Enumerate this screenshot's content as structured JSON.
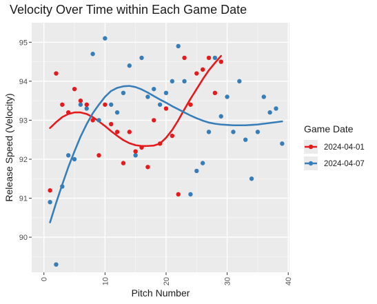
{
  "chart_data": {
    "type": "scatter",
    "title": "Velocity Over Time within Each Game Date",
    "xlabel": "Pitch Number",
    "ylabel": "Release Speed (Velocity)",
    "xlim": [
      0,
      40
    ],
    "ylim": [
      89.1,
      95.5
    ],
    "x_ticks": [
      0,
      10,
      20,
      30,
      40
    ],
    "y_ticks": [
      90,
      91,
      92,
      93,
      94,
      95
    ],
    "grid": true,
    "smoothing": "loess",
    "legend": {
      "title": "Game Date",
      "placement": "right"
    },
    "series": [
      {
        "name": "2024-04-01",
        "color": "#E41A1C",
        "points": [
          [
            1,
            91.2
          ],
          [
            2,
            94.2
          ],
          [
            3,
            93.4
          ],
          [
            4,
            93.2
          ],
          [
            5,
            93.8
          ],
          [
            6,
            93.5
          ],
          [
            7,
            93.4
          ],
          [
            8,
            93.0
          ],
          [
            9,
            92.1
          ],
          [
            10,
            93.4
          ],
          [
            11,
            92.9
          ],
          [
            12,
            92.7
          ],
          [
            13,
            91.9
          ],
          [
            14,
            92.7
          ],
          [
            15,
            92.2
          ],
          [
            16,
            92.3
          ],
          [
            17,
            91.8
          ],
          [
            18,
            93.0
          ],
          [
            19,
            92.4
          ],
          [
            20,
            93.3
          ],
          [
            21,
            92.6
          ],
          [
            22,
            91.1
          ],
          [
            23,
            94.6
          ],
          [
            24,
            93.4
          ],
          [
            25,
            94.2
          ],
          [
            26,
            94.3
          ],
          [
            27,
            94.6
          ],
          [
            28,
            93.7
          ],
          [
            29,
            94.5
          ]
        ],
        "trend": [
          [
            1,
            92.8
          ],
          [
            2,
            92.95
          ],
          [
            3,
            93.08
          ],
          [
            4,
            93.16
          ],
          [
            5,
            93.2
          ],
          [
            6,
            93.2
          ],
          [
            7,
            93.16
          ],
          [
            8,
            93.08
          ],
          [
            9,
            92.97
          ],
          [
            10,
            92.85
          ],
          [
            11,
            92.72
          ],
          [
            12,
            92.6
          ],
          [
            13,
            92.49
          ],
          [
            14,
            92.41
          ],
          [
            15,
            92.36
          ],
          [
            16,
            92.34
          ],
          [
            17,
            92.34
          ],
          [
            18,
            92.35
          ],
          [
            19,
            92.4
          ],
          [
            20,
            92.55
          ],
          [
            21,
            92.75
          ],
          [
            22,
            93.0
          ],
          [
            23,
            93.28
          ],
          [
            24,
            93.55
          ],
          [
            25,
            93.8
          ],
          [
            26,
            94.05
          ],
          [
            27,
            94.28
          ],
          [
            28,
            94.47
          ],
          [
            29,
            94.65
          ]
        ]
      },
      {
        "name": "2024-04-07",
        "color": "#377EB8",
        "points": [
          [
            1,
            90.9
          ],
          [
            2,
            89.3
          ],
          [
            3,
            91.3
          ],
          [
            4,
            92.1
          ],
          [
            5,
            92.0
          ],
          [
            6,
            93.4
          ],
          [
            7,
            93.3
          ],
          [
            8,
            94.7
          ],
          [
            9,
            93.0
          ],
          [
            10,
            95.1
          ],
          [
            11,
            93.4
          ],
          [
            12,
            93.2
          ],
          [
            13,
            93.7
          ],
          [
            14,
            94.4
          ],
          [
            15,
            92.1
          ],
          [
            16,
            94.6
          ],
          [
            17,
            93.6
          ],
          [
            18,
            93.8
          ],
          [
            19,
            93.4
          ],
          [
            20,
            93.7
          ],
          [
            21,
            94.0
          ],
          [
            22,
            94.9
          ],
          [
            23,
            94.0
          ],
          [
            24,
            91.1
          ],
          [
            25,
            91.7
          ],
          [
            26,
            91.9
          ],
          [
            27,
            92.7
          ],
          [
            28,
            94.6
          ],
          [
            29,
            93.1
          ],
          [
            30,
            93.6
          ],
          [
            31,
            92.7
          ],
          [
            32,
            94.0
          ],
          [
            33,
            92.5
          ],
          [
            34,
            91.5
          ],
          [
            35,
            92.7
          ],
          [
            36,
            93.6
          ],
          [
            37,
            93.2
          ],
          [
            38,
            93.3
          ],
          [
            39,
            92.4
          ]
        ],
        "trend": [
          [
            1,
            90.38
          ],
          [
            2,
            90.88
          ],
          [
            3,
            91.35
          ],
          [
            4,
            91.8
          ],
          [
            5,
            92.2
          ],
          [
            6,
            92.58
          ],
          [
            7,
            92.9
          ],
          [
            8,
            93.18
          ],
          [
            9,
            93.4
          ],
          [
            10,
            93.6
          ],
          [
            11,
            93.75
          ],
          [
            12,
            93.83
          ],
          [
            13,
            93.87
          ],
          [
            14,
            93.88
          ],
          [
            15,
            93.85
          ],
          [
            16,
            93.79
          ],
          [
            17,
            93.71
          ],
          [
            18,
            93.62
          ],
          [
            19,
            93.53
          ],
          [
            20,
            93.45
          ],
          [
            21,
            93.36
          ],
          [
            22,
            93.28
          ],
          [
            23,
            93.2
          ],
          [
            24,
            93.12
          ],
          [
            25,
            93.05
          ],
          [
            26,
            92.99
          ],
          [
            27,
            92.94
          ],
          [
            28,
            92.91
          ],
          [
            29,
            92.89
          ],
          [
            30,
            92.88
          ],
          [
            31,
            92.87
          ],
          [
            32,
            92.87
          ],
          [
            33,
            92.87
          ],
          [
            34,
            92.88
          ],
          [
            35,
            92.89
          ],
          [
            36,
            92.91
          ],
          [
            37,
            92.93
          ],
          [
            38,
            92.95
          ],
          [
            39,
            92.97
          ]
        ]
      }
    ]
  }
}
